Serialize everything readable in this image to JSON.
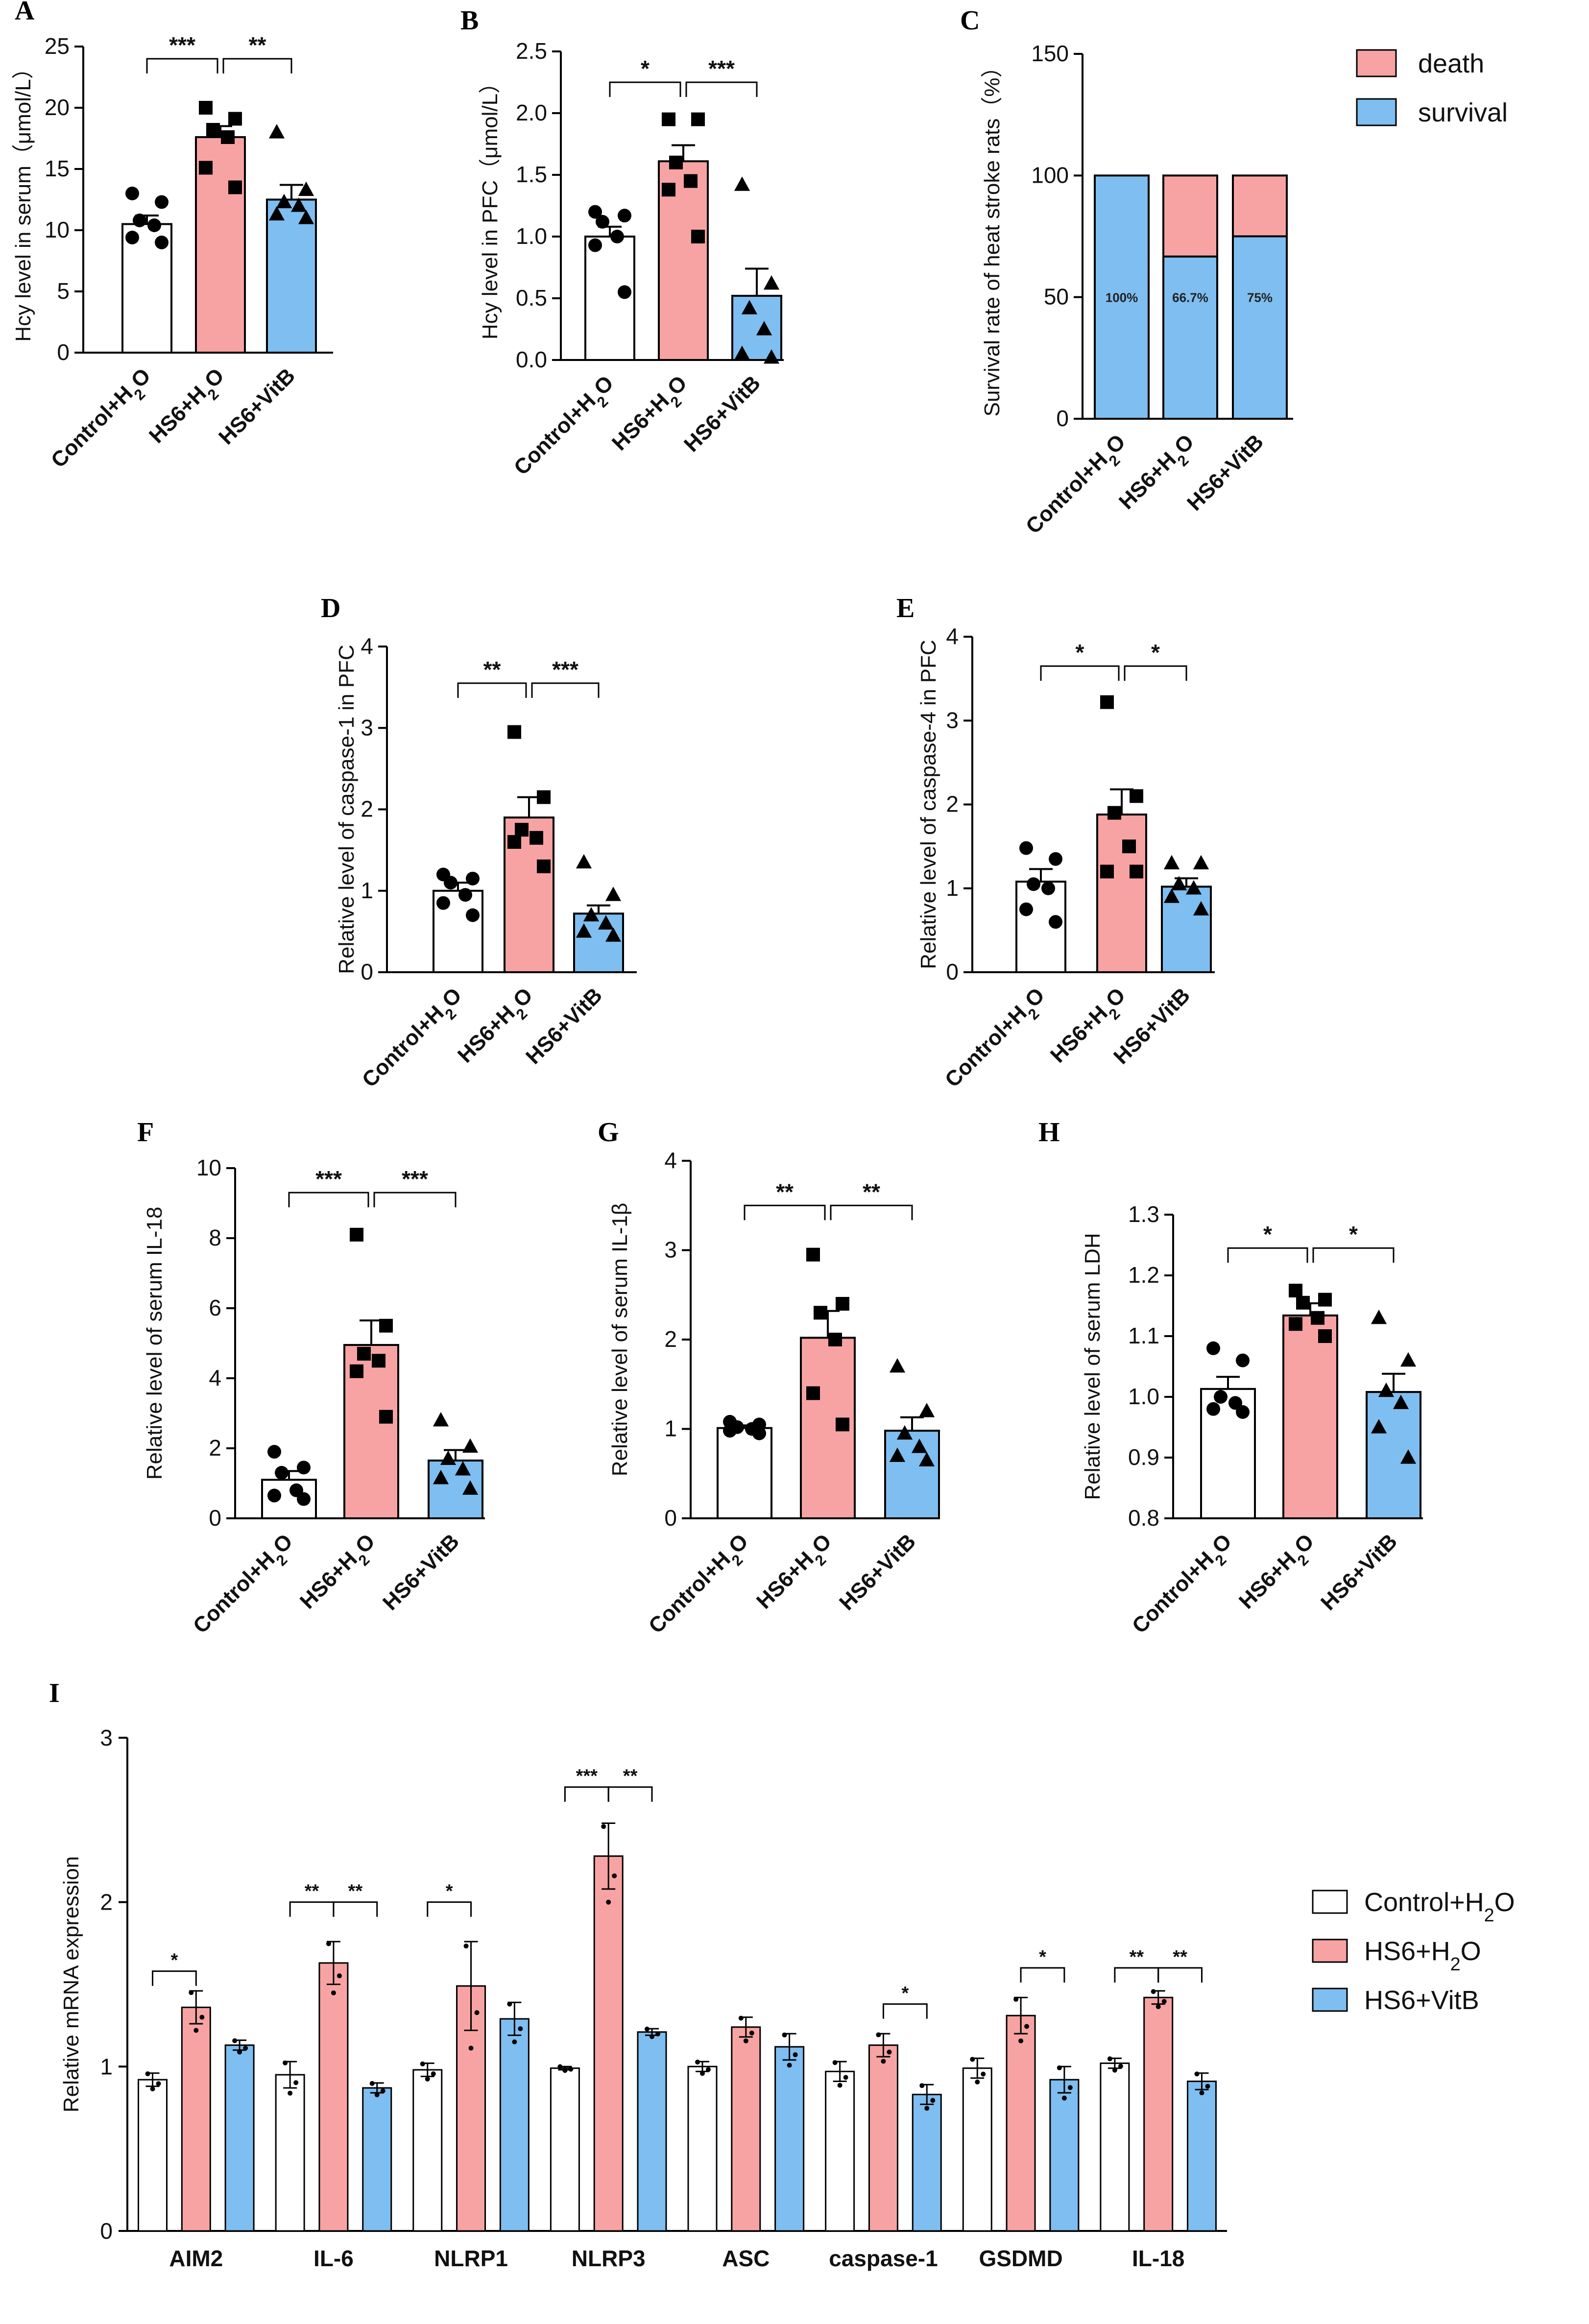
{
  "figure_title": "",
  "colors": {
    "control": "#ffffff",
    "hs6h2o": "#f8a3a3",
    "hs6vitb": "#7fbef0",
    "death": "#f8a3a3",
    "survival": "#7fbef0",
    "axis": "#000000"
  },
  "groups": [
    "Control+H2O",
    "HS6+H2O",
    "HS6+VitB"
  ],
  "chart_data": [
    {
      "panel": "A",
      "type": "bar",
      "ylabel": "Hcy level in serum（μmol/L）",
      "ylim": [
        0,
        25
      ],
      "yticks": [
        0,
        5,
        10,
        15,
        20,
        25
      ],
      "categories": [
        "Control+H2O",
        "HS6+H2O",
        "HS6+VitB"
      ],
      "values": [
        10.5,
        17.6,
        12.5
      ],
      "errors": [
        0.7,
        0.9,
        1.2
      ],
      "points": [
        [
          13.0,
          12.3,
          10.8,
          10.4,
          9.4,
          9.0
        ],
        [
          20.0,
          19.1,
          18.2,
          17.6,
          15.1,
          13.5
        ],
        [
          18.0,
          13.3,
          12.3,
          12.0,
          11.3,
          11.0
        ]
      ],
      "markers": [
        "circle",
        "square",
        "triangle"
      ],
      "significance": [
        {
          "pair": [
            0,
            1
          ],
          "label": "***",
          "y": 24.0
        },
        {
          "pair": [
            1,
            2
          ],
          "label": "**",
          "y": 24.0
        }
      ]
    },
    {
      "panel": "B",
      "type": "bar",
      "ylabel": "Hcy level in PFC（μmol/L）",
      "ylim": [
        0,
        2.5
      ],
      "yticks": [
        0.0,
        0.5,
        1.0,
        1.5,
        2.0,
        2.5
      ],
      "categories": [
        "Control+H2O",
        "HS6+H2O",
        "HS6+VitB"
      ],
      "values": [
        1.0,
        1.61,
        0.52
      ],
      "errors": [
        0.08,
        0.13,
        0.22
      ],
      "points": [
        [
          1.2,
          1.17,
          1.12,
          1.0,
          0.93,
          0.55
        ],
        [
          1.95,
          1.95,
          1.6,
          1.45,
          1.38,
          1.0
        ],
        [
          1.42,
          0.62,
          0.42,
          0.25,
          0.05,
          0.02
        ]
      ],
      "markers": [
        "circle",
        "square",
        "triangle"
      ],
      "significance": [
        {
          "pair": [
            0,
            1
          ],
          "label": "*",
          "y": 2.25
        },
        {
          "pair": [
            1,
            2
          ],
          "label": "***",
          "y": 2.25
        }
      ]
    },
    {
      "panel": "C",
      "type": "stacked-bar",
      "ylabel": "Survival rate of heat stroke rats（%）",
      "ylim": [
        0,
        150
      ],
      "yticks": [
        0,
        50,
        100,
        150
      ],
      "categories": [
        "Control+H2O",
        "HS6+H2O",
        "HS6+VitB"
      ],
      "series": [
        {
          "name": "survival",
          "values": [
            100,
            66.7,
            75
          ]
        },
        {
          "name": "death",
          "values": [
            0,
            33.3,
            25
          ]
        }
      ],
      "labels": [
        "100%",
        "66.7%",
        "75%"
      ],
      "legend": [
        "death",
        "survival"
      ]
    },
    {
      "panel": "D",
      "type": "bar",
      "ylabel": "Relative level of caspase-1 in PFC",
      "ylim": [
        0,
        4
      ],
      "yticks": [
        0,
        1,
        2,
        3,
        4
      ],
      "categories": [
        "Control+H2O",
        "HS6+H2O",
        "HS6+VitB"
      ],
      "values": [
        1.0,
        1.9,
        0.72
      ],
      "errors": [
        0.1,
        0.25,
        0.1
      ],
      "points": [
        [
          1.2,
          1.15,
          1.1,
          0.95,
          0.85,
          0.7
        ],
        [
          2.95,
          2.15,
          1.75,
          1.65,
          1.6,
          1.3
        ],
        [
          1.35,
          0.95,
          0.7,
          0.6,
          0.5,
          0.45
        ]
      ],
      "markers": [
        "circle",
        "square",
        "triangle"
      ],
      "significance": [
        {
          "pair": [
            0,
            1
          ],
          "label": "**",
          "y": 3.55
        },
        {
          "pair": [
            1,
            2
          ],
          "label": "***",
          "y": 3.55
        }
      ]
    },
    {
      "panel": "E",
      "type": "bar",
      "ylabel": "Relative level of caspase-4 in PFC",
      "ylim": [
        0,
        4
      ],
      "yticks": [
        0,
        1,
        2,
        3,
        4
      ],
      "categories": [
        "Control+H2O",
        "HS6+H2O",
        "HS6+VitB"
      ],
      "values": [
        1.08,
        1.88,
        1.02
      ],
      "errors": [
        0.15,
        0.3,
        0.1
      ],
      "points": [
        [
          1.48,
          1.35,
          1.05,
          1.0,
          0.75,
          0.6
        ],
        [
          3.22,
          2.1,
          1.9,
          1.5,
          1.2,
          1.2
        ],
        [
          1.3,
          1.3,
          1.05,
          1.0,
          0.9,
          0.75
        ]
      ],
      "markers": [
        "circle",
        "square",
        "triangle"
      ],
      "significance": [
        {
          "pair": [
            0,
            1
          ],
          "label": "*",
          "y": 3.65
        },
        {
          "pair": [
            1,
            2
          ],
          "label": "*",
          "y": 3.65
        }
      ]
    },
    {
      "panel": "F",
      "type": "bar",
      "ylabel": "Relative level of serum IL-18",
      "ylim": [
        0,
        10
      ],
      "yticks": [
        0,
        2,
        4,
        6,
        8,
        10
      ],
      "categories": [
        "Control+H2O",
        "HS6+H2O",
        "HS6+VitB"
      ],
      "values": [
        1.1,
        4.95,
        1.65
      ],
      "errors": [
        0.25,
        0.7,
        0.3
      ],
      "points": [
        [
          1.9,
          1.45,
          1.3,
          0.8,
          0.65,
          0.55
        ],
        [
          8.1,
          5.5,
          4.7,
          4.5,
          4.2,
          2.9
        ],
        [
          2.8,
          2.05,
          1.7,
          1.4,
          1.15,
          0.85
        ]
      ],
      "markers": [
        "circle",
        "square",
        "triangle"
      ],
      "significance": [
        {
          "pair": [
            0,
            1
          ],
          "label": "***",
          "y": 9.3
        },
        {
          "pair": [
            1,
            2
          ],
          "label": "***",
          "y": 9.3
        }
      ]
    },
    {
      "panel": "G",
      "type": "bar",
      "ylabel": "Relative level of serum IL-1β",
      "ylim": [
        0,
        4
      ],
      "yticks": [
        0,
        1,
        2,
        3,
        4
      ],
      "categories": [
        "Control+H2O",
        "HS6+H2O",
        "HS6+VitB"
      ],
      "values": [
        1.01,
        2.02,
        0.98
      ],
      "errors": [
        0.03,
        0.3,
        0.15
      ],
      "points": [
        [
          1.08,
          1.05,
          1.02,
          1.0,
          0.98,
          0.95
        ],
        [
          2.95,
          2.4,
          2.3,
          2.0,
          1.4,
          1.05
        ],
        [
          1.7,
          1.2,
          0.95,
          0.8,
          0.7,
          0.65
        ]
      ],
      "markers": [
        "circle",
        "square",
        "triangle"
      ],
      "significance": [
        {
          "pair": [
            0,
            1
          ],
          "label": "**",
          "y": 3.5
        },
        {
          "pair": [
            1,
            2
          ],
          "label": "**",
          "y": 3.5
        }
      ]
    },
    {
      "panel": "H",
      "type": "bar",
      "ylabel": "Relative level of serum LDH",
      "ylim": [
        0.8,
        1.3
      ],
      "yticks": [
        0.8,
        0.9,
        1.0,
        1.1,
        1.2,
        1.3
      ],
      "categories": [
        "Control+H2O",
        "HS6+H2O",
        "HS6+VitB"
      ],
      "values": [
        1.013,
        1.134,
        1.008
      ],
      "errors": [
        0.02,
        0.02,
        0.03
      ],
      "points": [
        [
          1.08,
          1.06,
          1.0,
          0.99,
          0.98,
          0.975
        ],
        [
          1.175,
          1.16,
          1.155,
          1.13,
          1.12,
          1.1
        ],
        [
          1.13,
          1.06,
          1.01,
          0.99,
          0.95,
          0.9
        ]
      ],
      "markers": [
        "circle",
        "square",
        "triangle"
      ],
      "significance": [
        {
          "pair": [
            0,
            1
          ],
          "label": "*",
          "y": 1.245
        },
        {
          "pair": [
            1,
            2
          ],
          "label": "*",
          "y": 1.245
        }
      ]
    },
    {
      "panel": "I",
      "type": "grouped-bar",
      "ylabel": "Relative mRNA expression",
      "ylim": [
        0,
        3
      ],
      "yticks": [
        0,
        1,
        2,
        3
      ],
      "categories": [
        "AIM2",
        "IL-6",
        "NLRP1",
        "NLRP3",
        "ASC",
        "caspase-1",
        "GSDMD",
        "IL-18"
      ],
      "series": [
        {
          "name": "Control+H2O",
          "values": [
            0.92,
            0.95,
            0.98,
            0.99,
            1.0,
            0.97,
            0.99,
            1.02
          ],
          "errors": [
            0.04,
            0.08,
            0.04,
            0.01,
            0.03,
            0.06,
            0.06,
            0.03
          ]
        },
        {
          "name": "HS6+H2O",
          "values": [
            1.36,
            1.63,
            1.49,
            2.28,
            1.24,
            1.13,
            1.31,
            1.42
          ],
          "errors": [
            0.1,
            0.13,
            0.27,
            0.2,
            0.06,
            0.07,
            0.11,
            0.04
          ]
        },
        {
          "name": "HS6+VitB",
          "values": [
            1.13,
            0.87,
            1.29,
            1.21,
            1.12,
            0.83,
            0.92,
            0.91
          ],
          "errors": [
            0.03,
            0.03,
            0.1,
            0.02,
            0.08,
            0.06,
            0.08,
            0.05
          ]
        }
      ],
      "significance": [
        {
          "category": 0,
          "pair": [
            0,
            1
          ],
          "label": "*",
          "y": 1.58
        },
        {
          "category": 1,
          "pair": [
            0,
            1
          ],
          "label": "**",
          "y": 2.0
        },
        {
          "category": 1,
          "pair": [
            1,
            2
          ],
          "label": "**",
          "y": 2.0
        },
        {
          "category": 2,
          "pair": [
            0,
            1
          ],
          "label": "*",
          "y": 2.0
        },
        {
          "category": 3,
          "pair": [
            0,
            1
          ],
          "label": "***",
          "y": 2.7
        },
        {
          "category": 3,
          "pair": [
            1,
            2
          ],
          "label": "**",
          "y": 2.7
        },
        {
          "category": 5,
          "pair": [
            1,
            2
          ],
          "label": "*",
          "y": 1.38
        },
        {
          "category": 6,
          "pair": [
            1,
            2
          ],
          "label": "*",
          "y": 1.6
        },
        {
          "category": 7,
          "pair": [
            0,
            1
          ],
          "label": "**",
          "y": 1.6
        },
        {
          "category": 7,
          "pair": [
            1,
            2
          ],
          "label": "**",
          "y": 1.6
        }
      ],
      "legend": [
        "Control+H2O",
        "HS6+H2O",
        "HS6+VitB"
      ]
    }
  ]
}
